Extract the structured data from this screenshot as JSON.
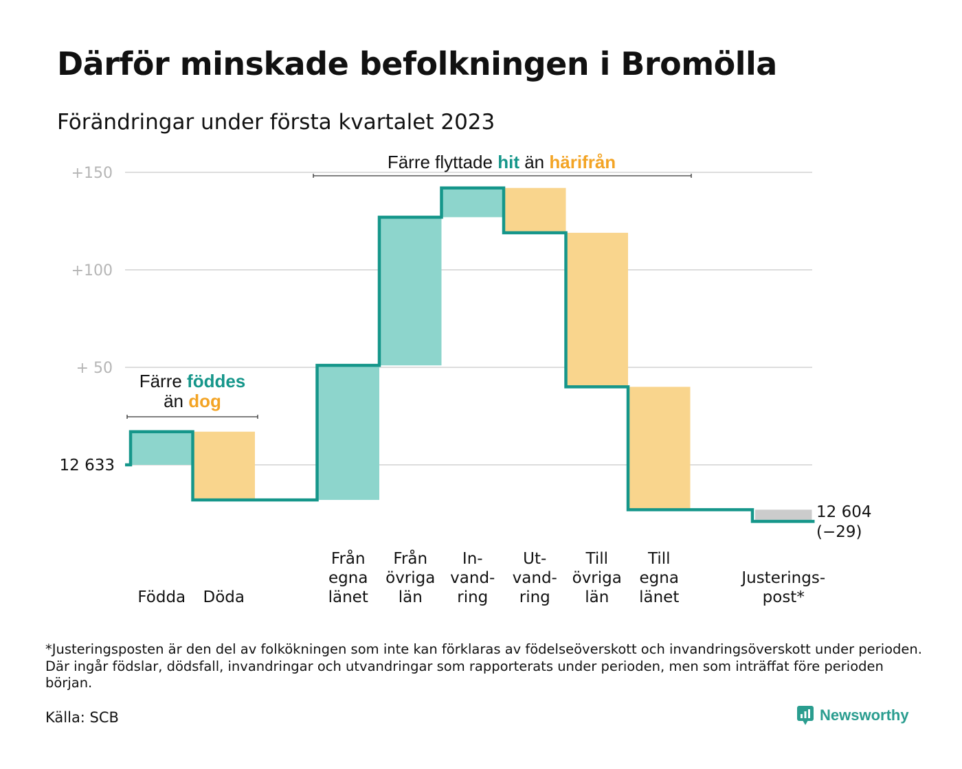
{
  "title": "Därför minskade befolkningen i Bromölla",
  "subtitle": "Förändringar under första kvartalet 2023",
  "footnote": "*Justeringsposten är den del av folkökningen som inte kan förklaras av födelseöverskott och invandringsöverskott under perioden. Där ingår födslar, dödsfall, invandringar och utvandringar som rapporterats under perioden, men som inträffat före perioden början.",
  "source": "Källa: SCB",
  "brand": {
    "name": "Newsworthy",
    "color": "#2a9d8f"
  },
  "colors": {
    "increase": "#8dd5cc",
    "decrease": "#f9d58d",
    "adjustment": "#cccccc",
    "line": "#15968a",
    "grid": "#dddddd",
    "hit": "#15968a",
    "harifran": "#f3a425"
  },
  "chart_data": {
    "type": "waterfall",
    "start": {
      "value": 12633,
      "label": "12 633"
    },
    "end": {
      "value": 12604,
      "label": "12 604",
      "change_label": "(−29)"
    },
    "yticks": [
      {
        "value": 150,
        "label": "+150"
      },
      {
        "value": 100,
        "label": "+100"
      },
      {
        "value": 50,
        "label": "+ 50"
      }
    ],
    "ylim": [
      -30,
      150
    ],
    "steps": [
      {
        "label": [
          "Födda"
        ],
        "value": 17,
        "kind": "increase"
      },
      {
        "label": [
          "Döda"
        ],
        "value": -35,
        "kind": "decrease"
      },
      {
        "label": [
          ""
        ],
        "value": 0,
        "kind": "none"
      },
      {
        "label": [
          "Från",
          "egna",
          "länet"
        ],
        "value": 69,
        "kind": "increase"
      },
      {
        "label": [
          "Från",
          "övriga",
          "län"
        ],
        "value": 76,
        "kind": "increase"
      },
      {
        "label": [
          "In-",
          "vand-",
          "ring"
        ],
        "value": 15,
        "kind": "increase"
      },
      {
        "label": [
          "Ut-",
          "vand-",
          "ring"
        ],
        "value": -23,
        "kind": "decrease"
      },
      {
        "label": [
          "Till",
          "övriga",
          "län"
        ],
        "value": -79,
        "kind": "decrease"
      },
      {
        "label": [
          "Till",
          "egna",
          "länet"
        ],
        "value": -63,
        "kind": "decrease"
      },
      {
        "label": [
          ""
        ],
        "value": 0,
        "kind": "none"
      },
      {
        "label": [
          "Justerings-",
          "post*"
        ],
        "value": -6,
        "kind": "adjustment"
      }
    ],
    "annotations": [
      {
        "parts": [
          {
            "text": "Färre ",
            "role": "plain"
          },
          {
            "text": "föddes",
            "role": "hit"
          }
        ],
        "parts2": [
          {
            "text": "än ",
            "role": "plain"
          },
          {
            "text": "dog",
            "role": "harifran"
          }
        ]
      },
      {
        "parts": [
          {
            "text": "Färre flyttade ",
            "role": "plain"
          },
          {
            "text": "hit",
            "role": "hit"
          },
          {
            "text": " än ",
            "role": "plain"
          },
          {
            "text": "härifrån",
            "role": "harifran"
          }
        ]
      }
    ]
  }
}
